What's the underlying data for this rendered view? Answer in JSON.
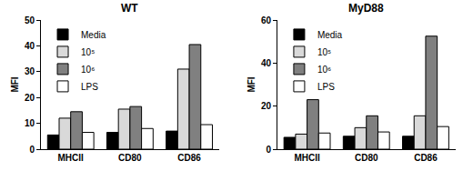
{
  "chart_data": [
    {
      "type": "bar",
      "title": "WT",
      "y_label": "MFI",
      "categories": [
        "MHCII",
        "CD80",
        "CD86"
      ],
      "series": [
        {
          "name": "Media",
          "color": "#000000",
          "values": [
            5.5,
            6.5,
            7
          ]
        },
        {
          "name": "10⁵",
          "color": "#d9d9d9",
          "values": [
            12,
            15.5,
            31
          ]
        },
        {
          "name": "10⁶",
          "color": "#808080",
          "values": [
            14.5,
            16.5,
            40.5
          ]
        },
        {
          "name": "LPS",
          "color": "#ffffff",
          "values": [
            6.5,
            8,
            9.5
          ]
        }
      ],
      "ylim": [
        0,
        50
      ],
      "yticks": [
        0,
        10,
        20,
        30,
        40,
        50
      ],
      "grid": false,
      "legend": "upper left"
    },
    {
      "type": "bar",
      "title": "MyD88",
      "y_label": "MFI",
      "categories": [
        "MHCII",
        "CD80",
        "CD86"
      ],
      "series": [
        {
          "name": "Media",
          "color": "#000000",
          "values": [
            5.5,
            6,
            6
          ]
        },
        {
          "name": "10⁵",
          "color": "#d9d9d9",
          "values": [
            7,
            10,
            15.5
          ]
        },
        {
          "name": "10⁶",
          "color": "#808080",
          "values": [
            23,
            15.5,
            52.5
          ]
        },
        {
          "name": "LPS",
          "color": "#ffffff",
          "values": [
            7.5,
            8,
            10.5
          ]
        }
      ],
      "ylim": [
        0,
        60
      ],
      "yticks": [
        0,
        20,
        40,
        60
      ],
      "grid": false,
      "legend": "upper left"
    }
  ]
}
